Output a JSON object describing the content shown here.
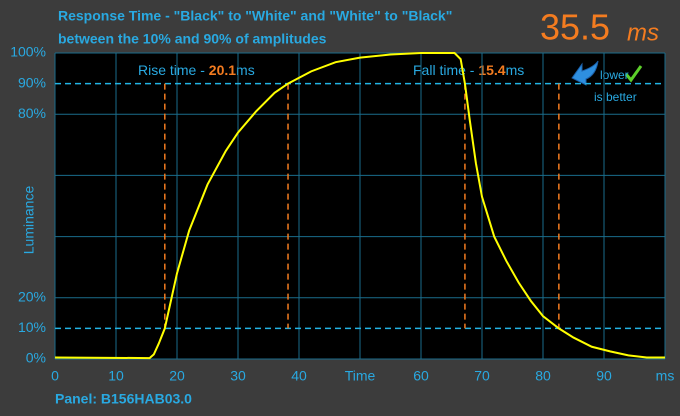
{
  "chart_data": {
    "type": "line",
    "title": "Response Time - \"Black\" to \"White\" and \"White\" to \"Black\"",
    "subtitle": "between the 10% and 90% of amplitudes",
    "headline_value": "35.5",
    "headline_unit": "ms",
    "y_label": "Luminance",
    "footer": "Panel: B156HAB03.0",
    "rise_text": "Rise time - ",
    "rise_value": "20.1",
    "rise_unit": "ms",
    "fall_text": "Fall time - ",
    "fall_value": "15.4",
    "fall_unit": "ms",
    "badge": [
      "lower",
      "is better"
    ],
    "xlim": [
      0,
      100
    ],
    "ylim": [
      0,
      100
    ],
    "xticks": [
      0,
      10,
      20,
      30,
      40,
      {
        "value": 50,
        "label": "Time"
      },
      60,
      70,
      80,
      90,
      {
        "value": 100,
        "label": "ms"
      }
    ],
    "yticks": [
      {
        "value": 0,
        "label": "0%"
      },
      {
        "value": 10,
        "label": "10%"
      },
      {
        "value": 20,
        "label": "20%"
      },
      {
        "value": 80,
        "label": "80%"
      },
      {
        "value": 90,
        "label": "90%"
      },
      {
        "value": 100,
        "label": "100%"
      }
    ],
    "ygrid": [
      0,
      20,
      40,
      60,
      80,
      100
    ],
    "thresholds": [
      10,
      90
    ],
    "markers_x": [
      18,
      38.2,
      67.2,
      82.6
    ],
    "grid": true,
    "x": [
      0,
      15.5,
      16.2,
      17,
      18,
      20,
      22,
      25,
      28,
      30,
      33,
      36,
      38.2,
      42,
      46,
      50,
      55,
      60,
      65.5,
      66.5,
      67.2,
      68,
      69,
      70,
      72,
      74,
      76,
      78,
      80,
      82.6,
      85,
      88,
      91,
      94,
      97,
      100
    ],
    "series": [
      {
        "name": "Luminance",
        "color": "#ffff00",
        "values": [
          0.5,
          0.3,
          1.5,
          5,
          10,
          28,
          42,
          57,
          68,
          74,
          81,
          87,
          90,
          94,
          97,
          98.5,
          99.5,
          100,
          100,
          98,
          90,
          78,
          64,
          53,
          40,
          32,
          25,
          19,
          14,
          10,
          7,
          4,
          2.5,
          1.2,
          0.5,
          0.5
        ]
      }
    ]
  }
}
